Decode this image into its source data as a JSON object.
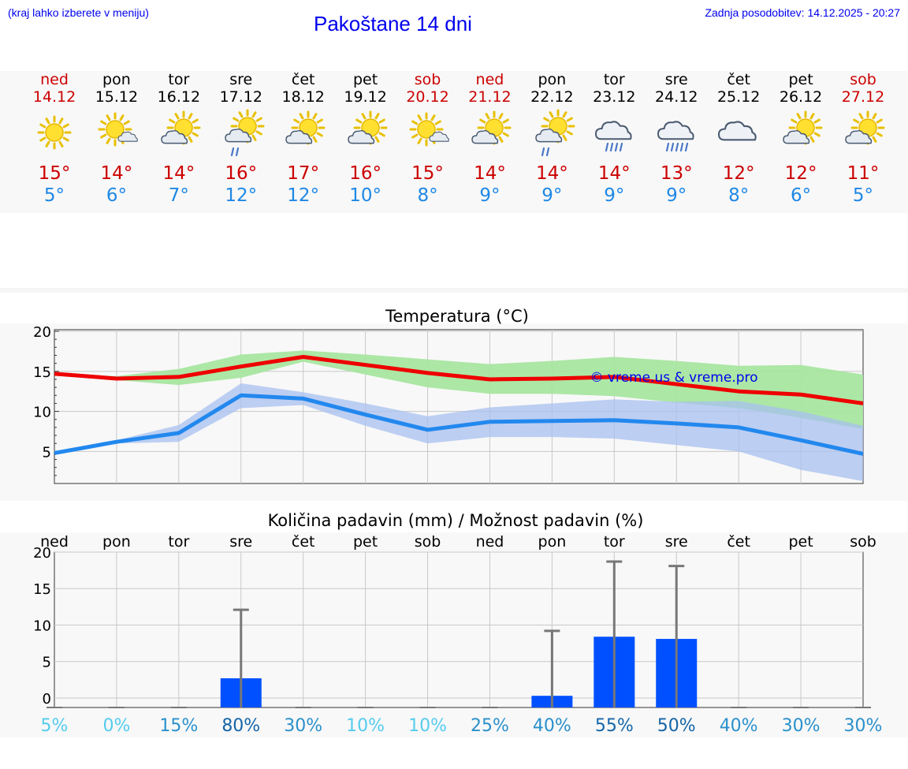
{
  "header": {
    "left_note": "(kraj lahko izberete v meniju)",
    "title": "Pakoštane 14 dni",
    "updated": "Zadnja posodobitev: 14.12.2025 - 20:27"
  },
  "colors": {
    "weekday": "#000000",
    "weekend": "#cc0000",
    "tmax": "#cc0000",
    "tmin": "#1e88e5",
    "max_line": "#ee0000",
    "min_line": "#2288ee",
    "max_band": "#a8e6a0",
    "min_band": "#a8c0f0",
    "bar": "#0050ff",
    "errbar": "#777777",
    "watermark": "#0000ee"
  },
  "days": [
    {
      "name": "ned",
      "date": "14.12",
      "weekend": true,
      "icon": "sun-icon",
      "tmax": "15°",
      "tmin": "5°"
    },
    {
      "name": "pon",
      "date": "15.12",
      "weekend": false,
      "icon": "sun-small-cloud-icon",
      "tmax": "14°",
      "tmin": "6°"
    },
    {
      "name": "tor",
      "date": "16.12",
      "weekend": false,
      "icon": "sun-cloud-icon",
      "tmax": "14°",
      "tmin": "7°"
    },
    {
      "name": "sre",
      "date": "17.12",
      "weekend": false,
      "icon": "sun-cloud-rain-icon",
      "tmax": "16°",
      "tmin": "12°"
    },
    {
      "name": "čet",
      "date": "18.12",
      "weekend": false,
      "icon": "sun-cloud-icon",
      "tmax": "17°",
      "tmin": "12°"
    },
    {
      "name": "pet",
      "date": "19.12",
      "weekend": false,
      "icon": "sun-cloud-icon",
      "tmax": "16°",
      "tmin": "10°"
    },
    {
      "name": "sob",
      "date": "20.12",
      "weekend": true,
      "icon": "sun-small-cloud-icon",
      "tmax": "15°",
      "tmin": "8°"
    },
    {
      "name": "ned",
      "date": "21.12",
      "weekend": true,
      "icon": "sun-cloud-icon",
      "tmax": "14°",
      "tmin": "9°"
    },
    {
      "name": "pon",
      "date": "22.12",
      "weekend": false,
      "icon": "sun-cloud-rain-icon",
      "tmax": "14°",
      "tmin": "9°"
    },
    {
      "name": "tor",
      "date": "23.12",
      "weekend": false,
      "icon": "cloud-rain-icon",
      "tmax": "14°",
      "tmin": "9°"
    },
    {
      "name": "sre",
      "date": "24.12",
      "weekend": false,
      "icon": "cloud-heavy-rain-icon",
      "tmax": "13°",
      "tmin": "9°"
    },
    {
      "name": "čet",
      "date": "25.12",
      "weekend": false,
      "icon": "cloud-icon",
      "tmax": "12°",
      "tmin": "8°"
    },
    {
      "name": "pet",
      "date": "26.12",
      "weekend": false,
      "icon": "sun-cloud-icon",
      "tmax": "12°",
      "tmin": "6°"
    },
    {
      "name": "sob",
      "date": "27.12",
      "weekend": true,
      "icon": "sun-cloud-icon",
      "tmax": "11°",
      "tmin": "5°"
    }
  ],
  "chart_data": [
    {
      "type": "line",
      "title": "Temperatura (°C)",
      "x": [
        0,
        1,
        2,
        3,
        4,
        5,
        6,
        7,
        8,
        9,
        10,
        11,
        12,
        13
      ],
      "ylim": [
        1,
        20.2
      ],
      "yticks": [
        5,
        10,
        15,
        20
      ],
      "grid": true,
      "watermark": "© vreme.us & vreme.pro",
      "series": [
        {
          "name": "max",
          "values": [
            14.7,
            14.1,
            14.3,
            15.6,
            16.8,
            15.8,
            14.8,
            14.0,
            14.1,
            14.3,
            13.4,
            12.5,
            12.1,
            11.0
          ],
          "band_high": [
            14.7,
            14.4,
            15.3,
            17.1,
            17.6,
            17.1,
            16.5,
            15.9,
            16.3,
            16.8,
            16.3,
            15.7,
            15.8,
            14.6
          ],
          "band_low": [
            14.7,
            13.9,
            13.3,
            14.2,
            16.2,
            14.6,
            13.0,
            12.2,
            12.2,
            11.9,
            11.1,
            10.4,
            9.2,
            7.8
          ]
        },
        {
          "name": "min",
          "values": [
            4.8,
            6.2,
            7.3,
            12.0,
            11.6,
            9.6,
            7.7,
            8.7,
            8.8,
            8.9,
            8.5,
            8.0,
            6.4,
            4.7
          ],
          "band_high": [
            4.8,
            6.4,
            8.3,
            13.5,
            12.4,
            11.0,
            9.4,
            10.5,
            11.0,
            11.5,
            11.2,
            11.3,
            10.0,
            8.2
          ],
          "band_low": [
            4.8,
            6.0,
            6.2,
            10.4,
            10.8,
            8.2,
            6.0,
            6.8,
            6.8,
            6.6,
            5.8,
            5.0,
            2.7,
            1.3
          ]
        }
      ]
    },
    {
      "type": "bar",
      "title": "Količina padavin (mm) / Možnost padavin (%)",
      "categories": [
        "ned",
        "pon",
        "tor",
        "sre",
        "čet",
        "pet",
        "sob",
        "ned",
        "pon",
        "tor",
        "sre",
        "čet",
        "pet",
        "sob"
      ],
      "values": [
        0,
        0,
        0,
        2.7,
        0,
        0,
        0,
        0,
        0.3,
        8.4,
        8.1,
        0,
        0,
        0
      ],
      "error_high": [
        0,
        0,
        0,
        12.1,
        0,
        0,
        0,
        0,
        9.2,
        18.7,
        18.1,
        0,
        0,
        0
      ],
      "ylim": [
        -1.3,
        20
      ],
      "yticks": [
        0,
        5,
        10,
        15,
        20
      ],
      "grid": true,
      "probability": [
        "5%",
        "0%",
        "15%",
        "80%",
        "30%",
        "10%",
        "10%",
        "25%",
        "40%",
        "55%",
        "50%",
        "40%",
        "30%",
        "30%"
      ],
      "probability_colors": [
        "#55ccee",
        "#55ccee",
        "#2a90cc",
        "#1565a8",
        "#2a90cc",
        "#55ccee",
        "#55ccee",
        "#2a90cc",
        "#2a90cc",
        "#1565a8",
        "#1565a8",
        "#2a90cc",
        "#2a90cc",
        "#2a90cc"
      ]
    }
  ]
}
